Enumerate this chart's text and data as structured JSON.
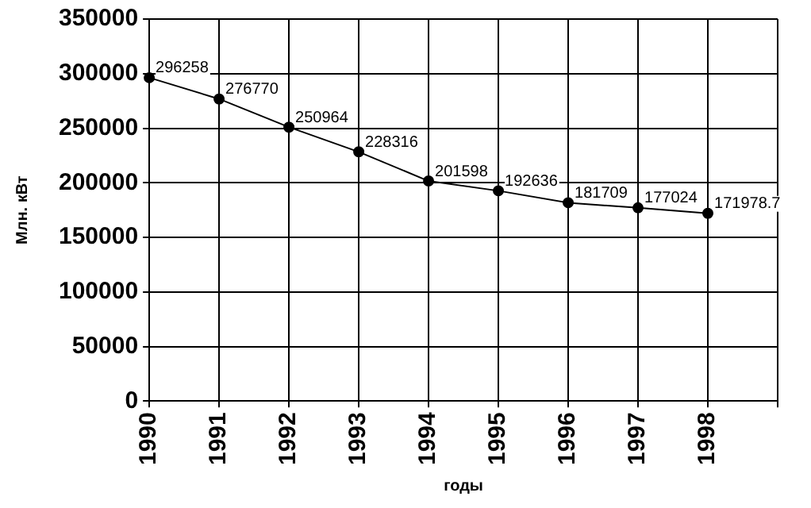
{
  "chart_data": {
    "type": "line",
    "xlabel": "годы",
    "ylabel": "Млн. кВт",
    "categories": [
      "1990",
      "1991",
      "1992",
      "1993",
      "1994",
      "1995",
      "1996",
      "1997",
      "1998",
      null
    ],
    "series": [
      {
        "color": "#000000",
        "values": [
          296258,
          276770,
          250964,
          228316,
          201598,
          192636,
          181709,
          177024,
          171978.7,
          null
        ]
      }
    ],
    "ylim": [
      0,
      350000
    ],
    "yticks": [
      0,
      50000,
      100000,
      150000,
      200000,
      250000,
      300000,
      350000
    ],
    "grid": true,
    "legend": false,
    "marker": "circle",
    "line_style": "solid",
    "data_labels": true
  }
}
